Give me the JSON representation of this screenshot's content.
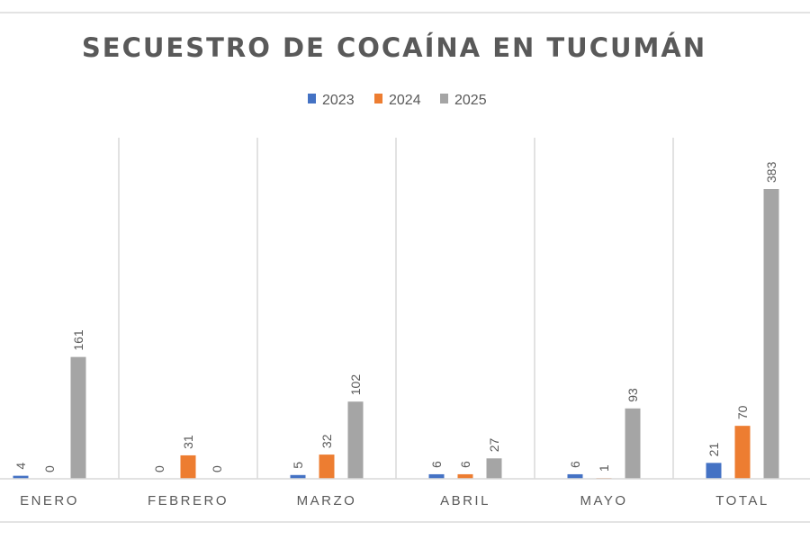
{
  "chart_data": {
    "type": "bar",
    "title": "SECUESTRO DE COCAÍNA EN TUCUMÁN",
    "categories": [
      "ENERO",
      "FEBRERO",
      "MARZO",
      "ABRIL",
      "MAYO",
      "TOTAL"
    ],
    "series": [
      {
        "name": "2023",
        "color": "#4472C4",
        "values": [
          4,
          0,
          5,
          6,
          6,
          21
        ]
      },
      {
        "name": "2024",
        "color": "#ED7D31",
        "values": [
          0,
          31,
          32,
          6,
          1,
          70
        ]
      },
      {
        "name": "2025",
        "color": "#A5A5A5",
        "values": [
          161,
          0,
          102,
          27,
          93,
          383
        ]
      }
    ],
    "ylim": [
      0,
      383
    ],
    "legend": "top",
    "data_labels": true,
    "grid": false
  }
}
